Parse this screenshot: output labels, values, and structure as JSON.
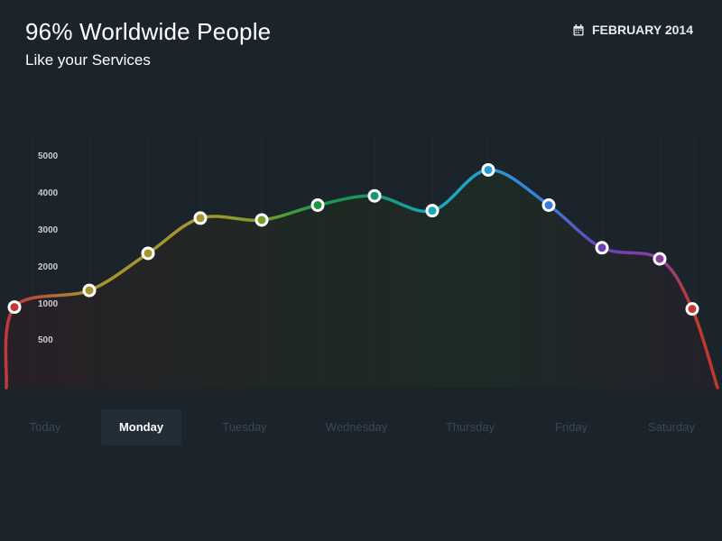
{
  "header": {
    "title": "96% Worldwide People",
    "subtitle": "Like your Services",
    "date": "FEBRUARY 2014"
  },
  "icons": {
    "date": "calendar-icon"
  },
  "colors": {
    "background": "#1b232b",
    "tab_active_bg": "#222d37",
    "tab_inactive": "#3b4753",
    "axis_label": "#c5ccd3"
  },
  "tabs": [
    {
      "label": "Today",
      "active": false
    },
    {
      "label": "Monday",
      "active": true
    },
    {
      "label": "Tuesday",
      "active": false
    },
    {
      "label": "Wednesday",
      "active": false
    },
    {
      "label": "Thursday",
      "active": false
    },
    {
      "label": "Friday",
      "active": false
    },
    {
      "label": "Saturday",
      "active": false
    }
  ],
  "chart_data": {
    "type": "line",
    "title": "",
    "xlabel": "",
    "ylabel": "",
    "grid": true,
    "ylim": [
      -1000,
      5000
    ],
    "yticks": [
      500,
      1000,
      2000,
      3000,
      4000,
      5000
    ],
    "series": [
      {
        "values": [
          900,
          1350,
          2350,
          3300,
          3250,
          3650,
          3900,
          3500,
          4600,
          3650,
          2500,
          2200,
          850
        ],
        "colors": [
          "#c0393b",
          "#a7942f",
          "#a7942f",
          "#a7962b",
          "#7a9c2c",
          "#1f9542",
          "#17956c",
          "#18aab8",
          "#2a9bd0",
          "#3a7bd5",
          "#6a3fb6",
          "#8b3f9e",
          "#c0392b"
        ]
      }
    ]
  }
}
